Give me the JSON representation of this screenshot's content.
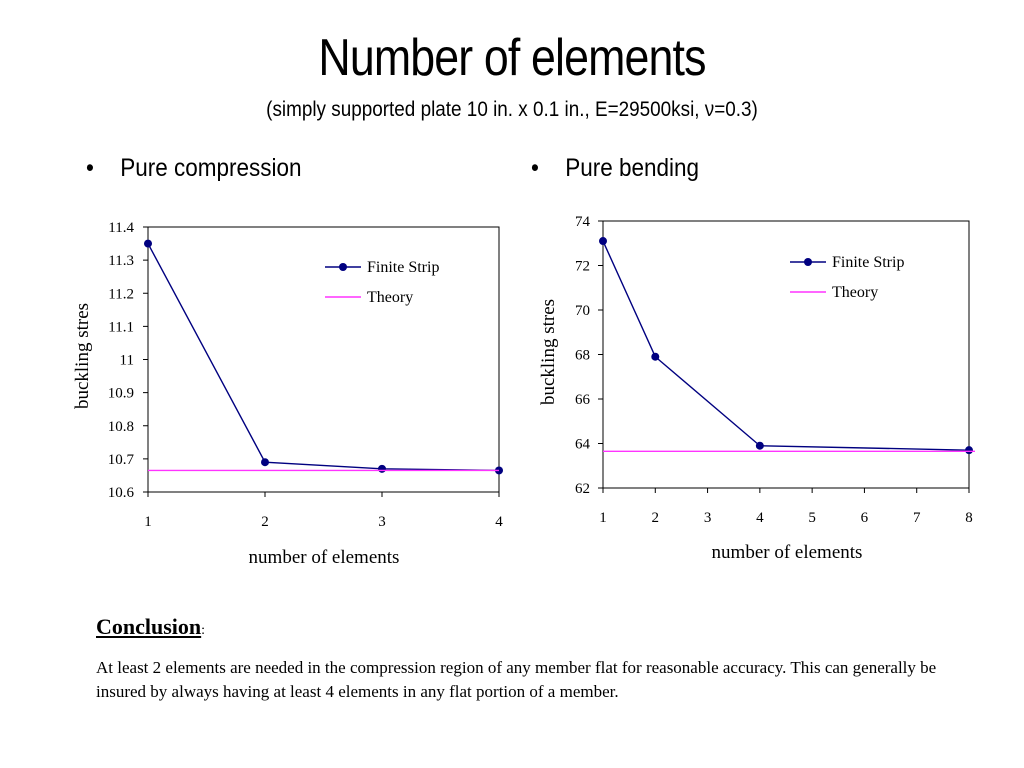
{
  "title": "Number of elements",
  "subtitle": "(simply supported plate 10 in. x 0.1 in., E=29500ksi, ν=0.3)",
  "bullets": {
    "left": "Pure compression",
    "right": "Pure bending",
    "marker": "•"
  },
  "conclusion": {
    "heading": "Conclusion",
    "colon": ":",
    "text": "At least 2 elements are needed in the compression region of any member flat for reasonable accuracy. This can generally be insured by always having at least 4 elements in any flat portion of a member."
  },
  "colors": {
    "finite_strip": "#000080",
    "theory": "#ff33ff",
    "axis": "#000000"
  },
  "chart_data": [
    {
      "type": "line",
      "xlabel": "number of elements",
      "ylabel": "buckling stres",
      "x_ticks": [
        "1",
        "2",
        "3",
        "4"
      ],
      "y_ticks": [
        "10.6",
        "10.7",
        "10.8",
        "10.9",
        "11",
        "11.1",
        "11.2",
        "11.3",
        "11.4"
      ],
      "xlim": [
        1,
        4
      ],
      "ylim": [
        10.6,
        11.4
      ],
      "legend_position": "top-right",
      "series": [
        {
          "name": "Finite Strip",
          "marker": "circle",
          "x": [
            1,
            2,
            3,
            4
          ],
          "y": [
            11.35,
            10.69,
            10.67,
            10.665
          ]
        },
        {
          "name": "Theory",
          "marker": "none",
          "x": [
            1,
            4
          ],
          "y": [
            10.665,
            10.665
          ]
        }
      ]
    },
    {
      "type": "line",
      "xlabel": "number of elements",
      "ylabel": "buckling stres",
      "x_ticks": [
        "1",
        "2",
        "3",
        "4",
        "5",
        "6",
        "7",
        "8"
      ],
      "y_ticks": [
        "62",
        "64",
        "66",
        "68",
        "70",
        "72",
        "74"
      ],
      "xlim": [
        1,
        8
      ],
      "ylim": [
        62,
        74
      ],
      "legend_position": "top-right",
      "series": [
        {
          "name": "Finite Strip",
          "marker": "circle",
          "x": [
            1,
            2,
            4,
            8
          ],
          "y": [
            73.1,
            67.9,
            63.9,
            63.7
          ]
        },
        {
          "name": "Theory",
          "marker": "none",
          "x": [
            1,
            8
          ],
          "y": [
            63.65,
            63.65
          ]
        }
      ]
    }
  ]
}
